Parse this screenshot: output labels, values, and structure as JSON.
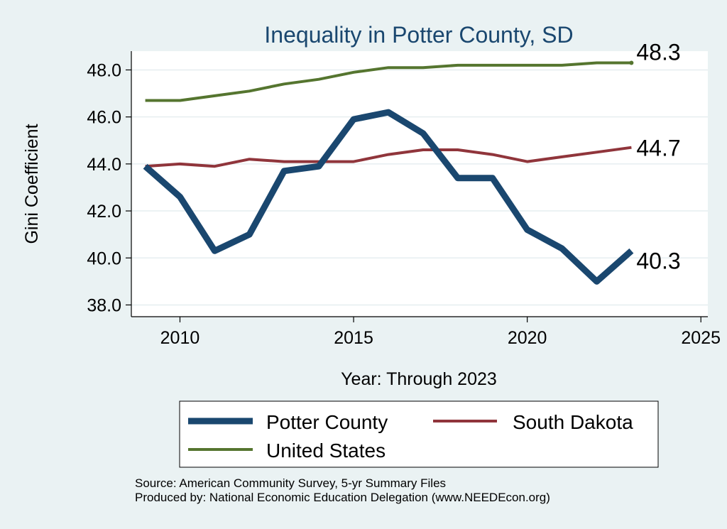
{
  "chart_data": {
    "type": "line",
    "title": "Inequality in Potter County, SD",
    "xlabel": "Year: Through 2023",
    "ylabel": "Gini Coefficient",
    "xlim": [
      2008.6,
      2025.2
    ],
    "ylim": [
      37.5,
      48.8
    ],
    "x_ticks": [
      2010,
      2015,
      2020,
      2025
    ],
    "y_ticks": [
      38.0,
      40.0,
      42.0,
      44.0,
      46.0,
      48.0
    ],
    "y_tick_labels": [
      "38.0",
      "40.0",
      "42.0",
      "44.0",
      "46.0",
      "48.0"
    ],
    "grid": true,
    "x": [
      2009,
      2010,
      2011,
      2012,
      2013,
      2014,
      2015,
      2016,
      2017,
      2018,
      2019,
      2020,
      2021,
      2022,
      2023
    ],
    "series": [
      {
        "name": "Potter County",
        "color": "#1a476f",
        "values": [
          43.9,
          42.6,
          40.3,
          41.0,
          43.7,
          43.9,
          45.9,
          46.2,
          45.3,
          43.4,
          43.4,
          41.2,
          40.4,
          39.0,
          40.3
        ],
        "end_label": "40.3"
      },
      {
        "name": "South Dakota",
        "color": "#90353b",
        "values": [
          43.9,
          44.0,
          43.9,
          44.2,
          44.1,
          44.1,
          44.1,
          44.4,
          44.6,
          44.6,
          44.4,
          44.1,
          44.3,
          44.5,
          44.7
        ],
        "end_label": "44.7"
      },
      {
        "name": "United States",
        "color": "#55752f",
        "values": [
          46.7,
          46.7,
          46.9,
          47.1,
          47.4,
          47.6,
          47.9,
          48.1,
          48.1,
          48.2,
          48.2,
          48.2,
          48.2,
          48.3,
          48.3
        ],
        "end_label": "48.3"
      }
    ],
    "legend": {
      "position": "bottom",
      "entries": [
        "Potter County",
        "South Dakota",
        "United States"
      ]
    }
  },
  "footer": {
    "source": "Source: American Community Survey, 5-yr Summary Files",
    "produced": "Produced by: National Economic Education Delegation (www.NEEDEcon.org)"
  },
  "colors": {
    "background": "#eaf2f3",
    "plot_background": "#ffffff",
    "title": "#1a476f"
  }
}
